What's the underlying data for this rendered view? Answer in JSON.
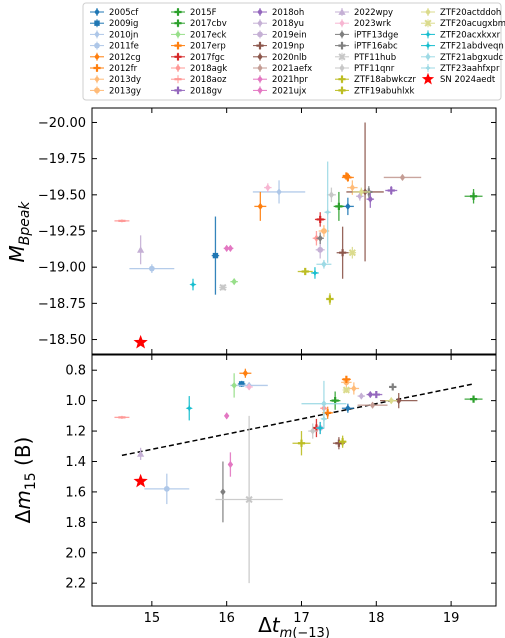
{
  "chart_data": [
    {
      "type": "scatter",
      "title": "",
      "xlabel": "Δt_m(−13)",
      "ylabel": "M_Bpeak",
      "xlim": [
        14.2,
        19.6
      ],
      "ylim": [
        -20.1,
        -18.4
      ],
      "y_inverted": true,
      "xticks": [
        15,
        16,
        17,
        18,
        19
      ],
      "yticks": [
        -20.0,
        -19.75,
        -19.5,
        -19.25,
        -19.0,
        -18.75,
        -18.5
      ],
      "ytick_labels": [
        "−20.00",
        "−19.75",
        "−19.50",
        "−19.25",
        "−19.00",
        "−18.75",
        "−18.50"
      ],
      "grid": false,
      "points": [
        {
          "name": "2005cf",
          "x": 17.62,
          "y": -19.42,
          "xerr": 0.08,
          "yerr": 0.06
        },
        {
          "name": "2009ig",
          "x": 15.85,
          "y": -19.08,
          "xerr": 0.05,
          "yerr": 0.27
        },
        {
          "name": "2010jn",
          "x": 16.7,
          "y": -19.52,
          "xerr": 0.35,
          "yerr": 0.08
        },
        {
          "name": "2011fe",
          "x": 15.0,
          "y": -18.99,
          "xerr": 0.3,
          "yerr": 0.03
        },
        {
          "name": "2012cg",
          "x": 16.45,
          "y": -19.42,
          "xerr": 0.08,
          "yerr": 0.1
        },
        {
          "name": "2012fr",
          "x": 17.62,
          "y": -19.62,
          "xerr": 0.08,
          "yerr": 0.03
        },
        {
          "name": "2013dy",
          "x": 17.68,
          "y": -19.55,
          "xerr": 0.07,
          "yerr": 0.05
        },
        {
          "name": "2013gy",
          "x": 17.3,
          "y": -19.25,
          "xerr": 0.07,
          "yerr": 0.04
        },
        {
          "name": "2015F",
          "x": 19.3,
          "y": -19.49,
          "xerr": 0.12,
          "yerr": 0.05
        },
        {
          "name": "2017cbv",
          "x": 17.5,
          "y": -19.42,
          "xerr": 0.07,
          "yerr": 0.1
        },
        {
          "name": "2017eck",
          "x": 16.1,
          "y": -18.9,
          "xerr": 0.05,
          "yerr": 0.02
        },
        {
          "name": "2017erp",
          "x": 17.6,
          "y": -19.63,
          "xerr": 0.05,
          "yerr": 0.02
        },
        {
          "name": "2017fgc",
          "x": 17.25,
          "y": -19.33,
          "xerr": 0.07,
          "yerr": 0.05
        },
        {
          "name": "2018agk",
          "x": 17.2,
          "y": -19.2,
          "xerr": 0.05,
          "yerr": 0.05
        },
        {
          "name": "2018aoz",
          "x": 14.6,
          "y": -19.32,
          "xerr": 0.1,
          "yerr": 0.01
        },
        {
          "name": "2018gv",
          "x": 18.2,
          "y": -19.53,
          "xerr": 0.08,
          "yerr": 0.03
        },
        {
          "name": "2018oh",
          "x": 17.92,
          "y": -19.47,
          "xerr": 0.05,
          "yerr": 0.06
        },
        {
          "name": "2018yu",
          "x": 17.78,
          "y": -19.49,
          "xerr": 0.05,
          "yerr": 0.03
        },
        {
          "name": "2019ein",
          "x": 17.25,
          "y": -19.12,
          "xerr": 0.06,
          "yerr": 0.06
        },
        {
          "name": "2019np",
          "x": 17.55,
          "y": -19.1,
          "xerr": 0.08,
          "yerr": 0.18
        },
        {
          "name": "2020nlb",
          "x": 17.85,
          "y": -19.52,
          "xerr": 0.25,
          "yerr": 0.48
        },
        {
          "name": "2021aefx",
          "x": 18.35,
          "y": -19.62,
          "xerr": 0.25,
          "yerr": 0.02
        },
        {
          "name": "2021hpr",
          "x": 16.05,
          "y": -19.13,
          "xerr": 0.04,
          "yerr": 0.02
        },
        {
          "name": "2021ujx",
          "x": 16.0,
          "y": -19.13,
          "xerr": 0.04,
          "yerr": 0.02
        },
        {
          "name": "2022wpy",
          "x": 14.85,
          "y": -19.12,
          "xerr": 0.02,
          "yerr": 0.1
        },
        {
          "name": "2023wrk",
          "x": 16.55,
          "y": -19.55,
          "xerr": 0.05,
          "yerr": 0.03
        },
        {
          "name": "iPTF13dge",
          "x": 17.25,
          "y": -19.2,
          "xerr": 0.05,
          "yerr": 0.04
        },
        {
          "name": "iPTF16abc",
          "x": 17.9,
          "y": -19.52,
          "xerr": 0.05,
          "yerr": 0.04
        },
        {
          "name": "PTF11hub",
          "x": 15.95,
          "y": -18.86,
          "xerr": 0.05,
          "yerr": 0.02
        },
        {
          "name": "PTF11qnr",
          "x": 17.4,
          "y": -19.5,
          "xerr": 0.06,
          "yerr": 0.05
        },
        {
          "name": "ZTF18abwkczr",
          "x": 17.05,
          "y": -18.97,
          "xerr": 0.1,
          "yerr": 0.02
        },
        {
          "name": "ZTF19abuhlxk",
          "x": 17.38,
          "y": -18.78,
          "xerr": 0.05,
          "yerr": 0.04
        },
        {
          "name": "ZTF20actddoh",
          "x": 17.8,
          "y": -19.52,
          "xerr": 0.12,
          "yerr": 0.03
        },
        {
          "name": "ZTF20acugxbm",
          "x": 17.68,
          "y": -19.1,
          "xerr": 0.05,
          "yerr": 0.04
        },
        {
          "name": "ZTF20acxkxxr",
          "x": 15.55,
          "y": -18.88,
          "xerr": 0.03,
          "yerr": 0.04
        },
        {
          "name": "ZTF21abdveqn",
          "x": 17.18,
          "y": -18.96,
          "xerr": 0.05,
          "yerr": 0.04
        },
        {
          "name": "ZTF21abgxudc",
          "x": 17.3,
          "y": -19.02,
          "xerr": 0.1,
          "yerr": 0.03
        },
        {
          "name": "ZTF23aahfxpr",
          "x": 17.35,
          "y": -19.38,
          "xerr": 0.04,
          "yerr": 0.35
        },
        {
          "name": "SN 2024aedt",
          "x": 14.85,
          "y": -18.48,
          "xerr": 0,
          "yerr": 0
        }
      ]
    },
    {
      "type": "scatter",
      "title": "",
      "xlabel": "Δt_m(−13)",
      "ylabel": "Δm_15 (B)",
      "xlim": [
        14.2,
        19.6
      ],
      "ylim": [
        0.7,
        2.35
      ],
      "y_inverted": true,
      "xticks": [
        15,
        16,
        17,
        18,
        19
      ],
      "xtick_labels": [
        "15",
        "16",
        "17",
        "18",
        "19"
      ],
      "yticks": [
        0.8,
        1.0,
        1.2,
        1.4,
        1.6,
        1.8,
        2.0,
        2.2
      ],
      "ytick_labels": [
        "0.8",
        "1.0",
        "1.2",
        "1.4",
        "1.6",
        "1.8",
        "2.0",
        "2.2"
      ],
      "grid": false,
      "fit_line": {
        "x": [
          14.6,
          19.3
        ],
        "y": [
          1.36,
          0.89
        ],
        "style": "dashed"
      },
      "points": [
        {
          "name": "2005cf",
          "x": 17.62,
          "y": 1.05,
          "xerr": 0.08,
          "yerr": 0.03
        },
        {
          "name": "2009ig",
          "x": 16.2,
          "y": 0.89,
          "xerr": 0.05,
          "yerr": 0.02
        },
        {
          "name": "2010jn",
          "x": 16.3,
          "y": 0.9,
          "xerr": 0.25,
          "yerr": 0.02
        },
        {
          "name": "2011fe",
          "x": 15.2,
          "y": 1.58,
          "xerr": 0.3,
          "yerr": 0.1
        },
        {
          "name": "2012cg",
          "x": 16.25,
          "y": 0.82,
          "xerr": 0.08,
          "yerr": 0.03
        },
        {
          "name": "2012fr",
          "x": 17.35,
          "y": 1.08,
          "xerr": 0.07,
          "yerr": 0.04
        },
        {
          "name": "2013dy",
          "x": 17.7,
          "y": 0.92,
          "xerr": 0.07,
          "yerr": 0.04
        },
        {
          "name": "2013gy",
          "x": 17.6,
          "y": 0.88,
          "xerr": 0.07,
          "yerr": 0.03
        },
        {
          "name": "2015F",
          "x": 19.3,
          "y": 0.99,
          "xerr": 0.12,
          "yerr": 0.01
        },
        {
          "name": "2017cbv",
          "x": 17.45,
          "y": 1.0,
          "xerr": 0.07,
          "yerr": 0.06
        },
        {
          "name": "2017eck",
          "x": 16.1,
          "y": 0.9,
          "xerr": 0.03,
          "yerr": 0.08
        },
        {
          "name": "2017erp",
          "x": 17.6,
          "y": 0.86,
          "xerr": 0.06,
          "yerr": 0.02
        },
        {
          "name": "2017fgc",
          "x": 17.2,
          "y": 1.18,
          "xerr": 0.05,
          "yerr": 0.06
        },
        {
          "name": "2018agk",
          "x": 17.3,
          "y": 1.05,
          "xerr": 0.05,
          "yerr": 0.04
        },
        {
          "name": "2018aoz",
          "x": 14.6,
          "y": 1.11,
          "xerr": 0.1,
          "yerr": 0.01
        },
        {
          "name": "2018gv",
          "x": 18.0,
          "y": 0.96,
          "xerr": 0.08,
          "yerr": 0.02
        },
        {
          "name": "2018oh",
          "x": 17.92,
          "y": 0.96,
          "xerr": 0.05,
          "yerr": 0.02
        },
        {
          "name": "2018yu",
          "x": 17.8,
          "y": 0.97,
          "xerr": 0.05,
          "yerr": 0.02
        },
        {
          "name": "2019ein",
          "x": 17.25,
          "y": 1.18,
          "xerr": 0.06,
          "yerr": 0.04
        },
        {
          "name": "2019np",
          "x": 17.5,
          "y": 1.28,
          "xerr": 0.08,
          "yerr": 0.04
        },
        {
          "name": "2020nlb",
          "x": 18.3,
          "y": 1.0,
          "xerr": 0.25,
          "yerr": 0.05
        },
        {
          "name": "2021aefx",
          "x": 17.95,
          "y": 1.03,
          "xerr": 0.2,
          "yerr": 0.02
        },
        {
          "name": "2021hpr",
          "x": 16.0,
          "y": 1.1,
          "xerr": 0.03,
          "yerr": 0.02
        },
        {
          "name": "2021ujx",
          "x": 16.05,
          "y": 1.42,
          "xerr": 0.03,
          "yerr": 0.08
        },
        {
          "name": "2022wpy",
          "x": 14.85,
          "y": 1.35,
          "xerr": 0.02,
          "yerr": 0.04
        },
        {
          "name": "2023wrk",
          "x": 16.3,
          "y": 0.91,
          "xerr": 0.05,
          "yerr": 0.02
        },
        {
          "name": "iPTF13dge",
          "x": 15.95,
          "y": 1.6,
          "xerr": 0.02,
          "yerr": 0.2
        },
        {
          "name": "iPTF16abc",
          "x": 18.22,
          "y": 0.91,
          "xerr": 0.05,
          "yerr": 0.02
        },
        {
          "name": "PTF11hub",
          "x": 16.3,
          "y": 1.65,
          "xerr": 0.45,
          "yerr": 0.55
        },
        {
          "name": "PTF11qnr",
          "x": 17.15,
          "y": 1.2,
          "xerr": 0.06,
          "yerr": 0.05
        },
        {
          "name": "ZTF18abwkczr",
          "x": 17.0,
          "y": 1.28,
          "xerr": 0.12,
          "yerr": 0.08
        },
        {
          "name": "ZTF19abuhlxk",
          "x": 17.55,
          "y": 1.27,
          "xerr": 0.05,
          "yerr": 0.04
        },
        {
          "name": "ZTF20actddoh",
          "x": 18.2,
          "y": 1.0,
          "xerr": 0.08,
          "yerr": 0.02
        },
        {
          "name": "ZTF20acugxbm",
          "x": 17.6,
          "y": 0.93,
          "xerr": 0.05,
          "yerr": 0.02
        },
        {
          "name": "ZTF20acxkxxr",
          "x": 15.5,
          "y": 1.05,
          "xerr": 0.03,
          "yerr": 0.08
        },
        {
          "name": "ZTF21abdveqn",
          "x": 17.25,
          "y": 1.18,
          "xerr": 0.05,
          "yerr": 0.04
        },
        {
          "name": "ZTF21abgxudc",
          "x": 17.3,
          "y": 1.02,
          "xerr": 0.3,
          "yerr": 0.15
        },
        {
          "name": "ZTF23aahfxpr",
          "x": 17.3,
          "y": 1.12,
          "xerr": 0.04,
          "yerr": 0.06
        },
        {
          "name": "SN 2024aedt",
          "x": 14.85,
          "y": 1.53,
          "xerr": 0,
          "yerr": 0
        }
      ]
    }
  ],
  "legend": {
    "placement": "top",
    "columns": 5,
    "entries": [
      {
        "name": "2005cf",
        "color": "#1f77b4",
        "marker": "diamond"
      },
      {
        "name": "2009ig",
        "color": "#1f77b4",
        "marker": "square"
      },
      {
        "name": "2010jn",
        "color": "#aec7e8",
        "marker": "diamond"
      },
      {
        "name": "2011fe",
        "color": "#aec7e8",
        "marker": "circle"
      },
      {
        "name": "2012cg",
        "color": "#ff7f0e",
        "marker": "diamond"
      },
      {
        "name": "2012fr",
        "color": "#ff7f0e",
        "marker": "plus"
      },
      {
        "name": "2013dy",
        "color": "#ffbb78",
        "marker": "diamond"
      },
      {
        "name": "2013gy",
        "color": "#ffbb78",
        "marker": "circle"
      },
      {
        "name": "2015F",
        "color": "#2ca02c",
        "marker": "plus"
      },
      {
        "name": "2017cbv",
        "color": "#2ca02c",
        "marker": "plus"
      },
      {
        "name": "2017eck",
        "color": "#98df8a",
        "marker": "diamond"
      },
      {
        "name": "2017erp",
        "color": "#ff7f0e",
        "marker": "plus"
      },
      {
        "name": "2017fgc",
        "color": "#d62728",
        "marker": "plus"
      },
      {
        "name": "2018agk",
        "color": "#ff9896",
        "marker": "diamond"
      },
      {
        "name": "2018aoz",
        "color": "#ff9896",
        "marker": "line"
      },
      {
        "name": "2018gv",
        "color": "#9467bd",
        "marker": "plus"
      },
      {
        "name": "2018oh",
        "color": "#9467bd",
        "marker": "diamond"
      },
      {
        "name": "2018yu",
        "color": "#c5b0d5",
        "marker": "diamond"
      },
      {
        "name": "2019ein",
        "color": "#c5b0d5",
        "marker": "circle"
      },
      {
        "name": "2019np",
        "color": "#8c564b",
        "marker": "plus"
      },
      {
        "name": "2020nlb",
        "color": "#8c564b",
        "marker": "diamond"
      },
      {
        "name": "2021aefx",
        "color": "#c49c94",
        "marker": "diamond"
      },
      {
        "name": "2021hpr",
        "color": "#e377c2",
        "marker": "diamond"
      },
      {
        "name": "2021ujx",
        "color": "#e377c2",
        "marker": "diamond"
      },
      {
        "name": "2022wpy",
        "color": "#c5b0d5",
        "marker": "triangle"
      },
      {
        "name": "2023wrk",
        "color": "#f7b6d2",
        "marker": "diamond"
      },
      {
        "name": "iPTF13dge",
        "color": "#7f7f7f",
        "marker": "diamond"
      },
      {
        "name": "iPTF16abc",
        "color": "#7f7f7f",
        "marker": "plus"
      },
      {
        "name": "PTF11hub",
        "color": "#c7c7c7",
        "marker": "x"
      },
      {
        "name": "PTF11qnr",
        "color": "#c7c7c7",
        "marker": "diamond"
      },
      {
        "name": "ZTF18abwkczr",
        "color": "#bcbd22",
        "marker": "plus"
      },
      {
        "name": "ZTF19abuhlxk",
        "color": "#bcbd22",
        "marker": "plus"
      },
      {
        "name": "ZTF20actddoh",
        "color": "#dbdb8d",
        "marker": "diamond"
      },
      {
        "name": "ZTF20acugxbm",
        "color": "#dbdb8d",
        "marker": "x"
      },
      {
        "name": "ZTF20acxkxxr",
        "color": "#17becf",
        "marker": "star4"
      },
      {
        "name": "ZTF21abdveqn",
        "color": "#17becf",
        "marker": "star4"
      },
      {
        "name": "ZTF21abgxudc",
        "color": "#9edae5",
        "marker": "diamond"
      },
      {
        "name": "ZTF23aahfxpr",
        "color": "#9edae5",
        "marker": "star4"
      },
      {
        "name": "SN 2024aedt",
        "color": "#ff0000",
        "marker": "star"
      }
    ]
  }
}
